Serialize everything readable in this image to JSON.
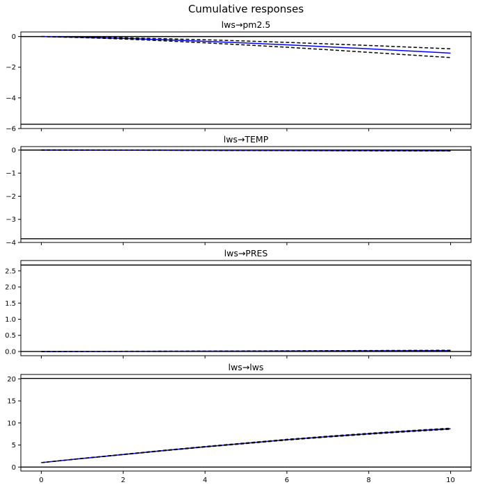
{
  "figure": {
    "title": "Cumulative responses"
  },
  "chart_data": [
    {
      "type": "line",
      "title": "lws→pm2.5",
      "xlim": [
        -0.5,
        10.5
      ],
      "ylim": [
        -6,
        0.3
      ],
      "yticks": [
        0,
        -2,
        -4,
        -6
      ],
      "ytick_labels": [
        "0",
        "−2",
        "−4",
        "−6"
      ],
      "hlines": [
        0,
        -5.72
      ],
      "x": [
        0,
        1,
        2,
        3,
        4,
        5,
        6,
        7,
        8,
        9,
        10
      ],
      "series": [
        {
          "role": "response",
          "color": "#0000ff",
          "dash": "solid",
          "values": [
            0,
            -0.05,
            -0.12,
            -0.21,
            -0.31,
            -0.42,
            -0.54,
            -0.67,
            -0.8,
            -0.94,
            -1.08
          ]
        },
        {
          "role": "upper",
          "color": "#000000",
          "dash": "dashed",
          "values": [
            0,
            -0.03,
            -0.08,
            -0.14,
            -0.21,
            -0.29,
            -0.38,
            -0.48,
            -0.58,
            -0.69,
            -0.8
          ]
        },
        {
          "role": "lower",
          "color": "#000000",
          "dash": "dashed",
          "values": [
            0,
            -0.07,
            -0.16,
            -0.28,
            -0.41,
            -0.55,
            -0.7,
            -0.86,
            -1.03,
            -1.2,
            -1.37
          ]
        }
      ]
    },
    {
      "type": "line",
      "title": "lws→TEMP",
      "xlim": [
        -0.5,
        10.5
      ],
      "ylim": [
        -4,
        0.15
      ],
      "yticks": [
        0,
        -1,
        -2,
        -3,
        -4
      ],
      "ytick_labels": [
        "0",
        "−1",
        "−2",
        "−3",
        "−4"
      ],
      "hlines": [
        0,
        -3.84
      ],
      "x": [
        0,
        1,
        2,
        3,
        4,
        5,
        6,
        7,
        8,
        9,
        10
      ],
      "series": [
        {
          "role": "response",
          "color": "#0000ff",
          "dash": "solid",
          "values": [
            0,
            -0.003,
            -0.006,
            -0.009,
            -0.012,
            -0.015,
            -0.018,
            -0.021,
            -0.024,
            -0.027,
            -0.03
          ]
        },
        {
          "role": "upper",
          "color": "#000000",
          "dash": "dashed",
          "values": [
            0,
            -0.002,
            -0.004,
            -0.006,
            -0.008,
            -0.01,
            -0.012,
            -0.014,
            -0.016,
            -0.018,
            -0.02
          ]
        },
        {
          "role": "lower",
          "color": "#000000",
          "dash": "dashed",
          "values": [
            0,
            -0.004,
            -0.008,
            -0.012,
            -0.016,
            -0.02,
            -0.024,
            -0.028,
            -0.032,
            -0.036,
            -0.04
          ]
        }
      ]
    },
    {
      "type": "line",
      "title": "lws→PRES",
      "xlim": [
        -0.5,
        10.5
      ],
      "ylim": [
        -0.13,
        2.82
      ],
      "yticks": [
        0,
        0.5,
        1,
        1.5,
        2,
        2.5
      ],
      "ytick_labels": [
        "0.0",
        "0.5",
        "1.0",
        "1.5",
        "2.0",
        "2.5"
      ],
      "hlines": [
        0,
        2.68
      ],
      "x": [
        0,
        1,
        2,
        3,
        4,
        5,
        6,
        7,
        8,
        9,
        10
      ],
      "series": [
        {
          "role": "response",
          "color": "#0000ff",
          "dash": "solid",
          "values": [
            0,
            0.002,
            0.004,
            0.006,
            0.009,
            0.012,
            0.015,
            0.018,
            0.021,
            0.024,
            0.027
          ]
        },
        {
          "role": "upper",
          "color": "#000000",
          "dash": "dashed",
          "values": [
            0,
            0.003,
            0.006,
            0.009,
            0.013,
            0.017,
            0.021,
            0.025,
            0.029,
            0.033,
            0.037
          ]
        },
        {
          "role": "lower",
          "color": "#000000",
          "dash": "dashed",
          "values": [
            0,
            0.001,
            0.002,
            0.003,
            0.005,
            0.007,
            0.009,
            0.011,
            0.013,
            0.015,
            0.017
          ]
        }
      ]
    },
    {
      "type": "line",
      "title": "lws→lws",
      "xlim": [
        -0.5,
        10.5
      ],
      "ylim": [
        -0.9,
        21
      ],
      "yticks": [
        0,
        5,
        10,
        15,
        20
      ],
      "ytick_labels": [
        "0",
        "5",
        "10",
        "15",
        "20"
      ],
      "xticks": [
        0,
        2,
        4,
        6,
        8,
        10
      ],
      "xtick_labels": [
        "0",
        "2",
        "4",
        "6",
        "8",
        "10"
      ],
      "hlines": [
        0,
        20.1
      ],
      "x": [
        0,
        1,
        2,
        3,
        4,
        5,
        6,
        7,
        8,
        9,
        10
      ],
      "series": [
        {
          "role": "response",
          "color": "#0000ff",
          "dash": "solid",
          "values": [
            1,
            1.95,
            2.85,
            3.75,
            4.6,
            5.4,
            6.2,
            6.9,
            7.55,
            8.15,
            8.7
          ]
        },
        {
          "role": "upper",
          "color": "#000000",
          "dash": "dashed",
          "values": [
            1,
            1.97,
            2.89,
            3.8,
            4.66,
            5.47,
            6.28,
            6.99,
            7.65,
            8.26,
            8.82
          ]
        },
        {
          "role": "lower",
          "color": "#000000",
          "dash": "dashed",
          "values": [
            1,
            1.93,
            2.81,
            3.7,
            4.54,
            5.33,
            6.12,
            6.81,
            7.45,
            8.04,
            8.58
          ]
        }
      ]
    }
  ]
}
